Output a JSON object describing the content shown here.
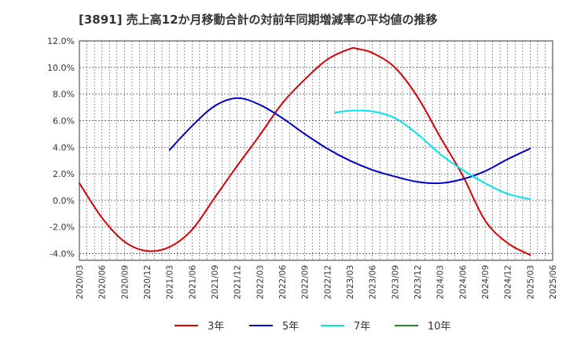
{
  "chart_data": {
    "type": "line",
    "title": "[3891]  売上高12か月移動合計の対前年同期増減率の平均値の推移",
    "xlabel": "",
    "ylabel": "",
    "x_ticks": [
      "2020/03",
      "2020/06",
      "2020/09",
      "2020/12",
      "2021/03",
      "2021/06",
      "2021/09",
      "2021/12",
      "2022/03",
      "2022/06",
      "2022/09",
      "2022/12",
      "2023/03",
      "2023/06",
      "2023/09",
      "2023/12",
      "2024/03",
      "2024/06",
      "2024/09",
      "2024/12",
      "2025/03",
      "2025/06"
    ],
    "y_ticks": [
      "12.0%",
      "10.0%",
      "8.0%",
      "6.0%",
      "4.0%",
      "2.0%",
      "0.0%",
      "-2.0%",
      "-4.0%"
    ],
    "ylim": [
      -4.5,
      12.0
    ],
    "grid": true,
    "legend_position": "bottom",
    "series": [
      {
        "name": "3年",
        "color": "#dd0000",
        "x": [
          "2020/03",
          "2020/06",
          "2020/09",
          "2020/12",
          "2021/03",
          "2021/06",
          "2021/09",
          "2021/12",
          "2022/03",
          "2022/06",
          "2022/09",
          "2022/12",
          "2023/03",
          "2023/04",
          "2023/06",
          "2023/09",
          "2023/12",
          "2024/03",
          "2024/06",
          "2024/09",
          "2024/12",
          "2025/03"
        ],
        "values": [
          1.3,
          -1.3,
          -3.1,
          -3.8,
          -3.5,
          -2.2,
          0.2,
          2.6,
          4.9,
          7.3,
          9.1,
          10.6,
          11.4,
          11.4,
          11.1,
          10.0,
          7.8,
          4.8,
          1.9,
          -1.5,
          -3.2,
          -4.1
        ]
      },
      {
        "name": "5年",
        "color": "#0000cc",
        "x": [
          "2021/03",
          "2021/06",
          "2021/09",
          "2021/12",
          "2022/03",
          "2022/06",
          "2022/09",
          "2022/12",
          "2023/03",
          "2023/06",
          "2023/09",
          "2023/12",
          "2024/03",
          "2024/06",
          "2024/09",
          "2024/12",
          "2025/03"
        ],
        "values": [
          3.8,
          5.6,
          7.1,
          7.7,
          7.2,
          6.2,
          5.0,
          3.9,
          3.0,
          2.3,
          1.8,
          1.4,
          1.3,
          1.6,
          2.2,
          3.1,
          3.9
        ]
      },
      {
        "name": "7年",
        "color": "#00e5ee",
        "x": [
          "2023/01",
          "2023/03",
          "2023/06",
          "2023/09",
          "2023/12",
          "2024/03",
          "2024/06",
          "2024/09",
          "2024/12",
          "2025/03"
        ],
        "values": [
          6.6,
          6.75,
          6.7,
          6.2,
          5.0,
          3.5,
          2.3,
          1.3,
          0.5,
          0.1
        ]
      },
      {
        "name": "10年",
        "color": "#228b22",
        "x": [],
        "values": []
      }
    ]
  }
}
